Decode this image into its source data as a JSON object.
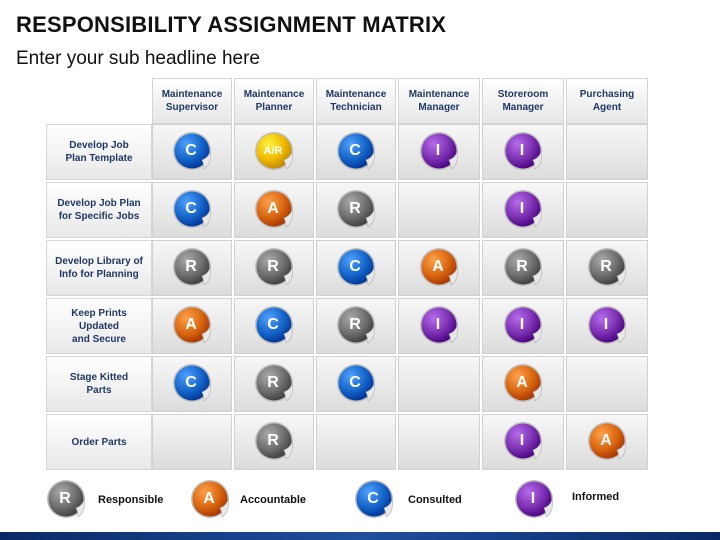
{
  "title": "RESPONSIBILITY ASSIGNMENT MATRIX",
  "subtitle": "Enter your sub headline here",
  "columns": [
    "Maintenance\nSupervisor",
    "Maintenance\nPlanner",
    "Maintenance\nTechnician",
    "Maintenance\nManager",
    "Storeroom\nManager",
    "Purchasing\nAgent"
  ],
  "rows": [
    "Develop Job\nPlan Template",
    "Develop Job Plan\nfor Specific Jobs",
    "Develop Library of\nInfo for Planning",
    "Keep Prints Updated\nand Secure",
    "Stage Kitted\nParts",
    "Order Parts"
  ],
  "matrix": [
    [
      "C",
      "A/R",
      "C",
      "I",
      "I",
      ""
    ],
    [
      "C",
      "A",
      "R",
      "",
      "I",
      ""
    ],
    [
      "R",
      "R",
      "C",
      "A",
      "R",
      "R"
    ],
    [
      "A",
      "C",
      "R",
      "I",
      "I",
      "I"
    ],
    [
      "C",
      "R",
      "C",
      "",
      "A",
      ""
    ],
    [
      "",
      "R",
      "",
      "",
      "I",
      "A"
    ]
  ],
  "legend": [
    {
      "code": "R",
      "label": "Responsible"
    },
    {
      "code": "A",
      "label": "Accountable"
    },
    {
      "code": "C",
      "label": "Consulted"
    },
    {
      "code": "I",
      "label": "Informed"
    }
  ],
  "colors": {
    "R": "#6e6e6e",
    "A": "#d8650f",
    "C": "#1464c8",
    "I": "#7a2fb0",
    "A/R": "#f0b800",
    "header_text": "#1f3864"
  }
}
